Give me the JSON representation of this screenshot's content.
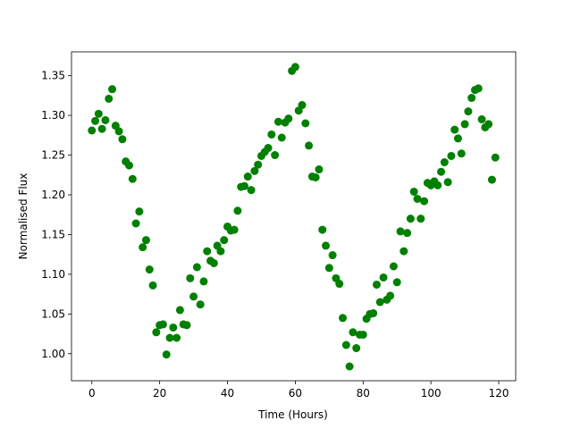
{
  "chart_data": {
    "type": "scatter",
    "xlabel": "Time (Hours)",
    "ylabel": "Normalised Flux",
    "color": "#008000",
    "xlim": [
      -6,
      125
    ],
    "ylim": [
      0.966,
      1.38
    ],
    "xticks": [
      0,
      20,
      40,
      60,
      80,
      100,
      120
    ],
    "yticks": [
      {
        "value": 1,
        "label": "1.00"
      },
      1.05,
      {
        "value": 1.1,
        "label": "1.10"
      },
      1.15,
      {
        "value": 1.2,
        "label": "1.20"
      },
      1.25,
      {
        "value": 1.3,
        "label": "1.30"
      },
      1.35
    ],
    "x": [
      0,
      1,
      2,
      3,
      4,
      5,
      6,
      7,
      8,
      9,
      10,
      11,
      12,
      13,
      14,
      15,
      16,
      17,
      18,
      19,
      20,
      21,
      22,
      23,
      24,
      25,
      26,
      27,
      28,
      29,
      30,
      31,
      32,
      33,
      34,
      35,
      36,
      37,
      38,
      39,
      40,
      41,
      42,
      43,
      44,
      45,
      46,
      47,
      48,
      49,
      50,
      51,
      52,
      53,
      54,
      55,
      56,
      57,
      58,
      59,
      60,
      61,
      62,
      63,
      64,
      65,
      66,
      67,
      68,
      69,
      70,
      71,
      72,
      73,
      74,
      75,
      76,
      77,
      78,
      79,
      80,
      81,
      82,
      83,
      84,
      85,
      86,
      87,
      88,
      89,
      90,
      91,
      92,
      93,
      94,
      95,
      96,
      97,
      98,
      99,
      100,
      101,
      102,
      103,
      104,
      105,
      106,
      107,
      108,
      109,
      110,
      111,
      112,
      113,
      114,
      115,
      116,
      117,
      118,
      119
    ],
    "values": [
      1.281,
      1.293,
      1.302,
      1.283,
      1.294,
      1.321,
      1.333,
      1.287,
      1.28,
      1.27,
      1.242,
      1.237,
      1.22,
      1.164,
      1.179,
      1.134,
      1.143,
      1.106,
      1.086,
      1.027,
      1.036,
      1.037,
      0.999,
      1.02,
      1.033,
      1.02,
      1.055,
      1.037,
      1.036,
      1.095,
      1.072,
      1.109,
      1.062,
      1.091,
      1.129,
      1.117,
      1.114,
      1.136,
      1.129,
      1.143,
      1.16,
      1.155,
      1.156,
      1.18,
      1.21,
      1.211,
      1.223,
      1.206,
      1.23,
      1.238,
      1.249,
      1.254,
      1.259,
      1.276,
      1.25,
      1.292,
      1.272,
      1.291,
      1.296,
      1.356,
      1.361,
      1.306,
      1.313,
      1.29,
      1.262,
      1.223,
      1.222,
      1.232,
      1.156,
      1.136,
      1.108,
      1.124,
      1.095,
      1.088,
      1.045,
      1.011,
      0.984,
      1.027,
      1.007,
      1.024,
      1.024,
      1.044,
      1.05,
      1.051,
      1.087,
      1.065,
      1.096,
      1.068,
      1.073,
      1.11,
      1.09,
      1.154,
      1.129,
      1.152,
      1.17,
      1.204,
      1.195,
      1.17,
      1.192,
      1.215,
      1.212,
      1.217,
      1.212,
      1.229,
      1.241,
      1.216,
      1.249,
      1.282,
      1.271,
      1.252,
      1.289,
      1.305,
      1.322,
      1.332,
      1.334,
      1.295,
      1.285,
      1.289,
      1.219,
      1.247
    ]
  }
}
